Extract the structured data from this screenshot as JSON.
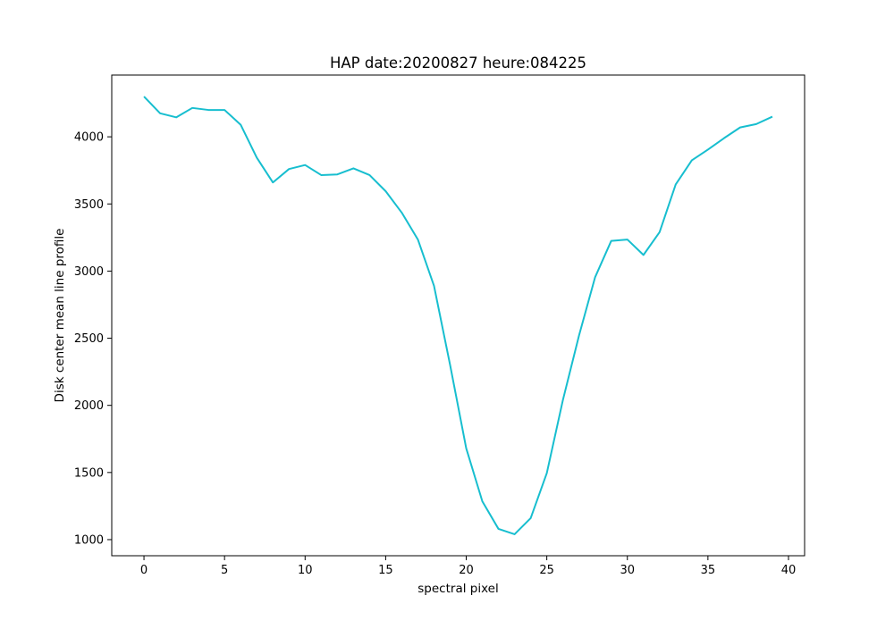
{
  "chart_data": {
    "type": "line",
    "title": "HAP date:20200827 heure:084225",
    "xlabel": "spectral pixel",
    "ylabel": "Disk center mean line profile",
    "xlim": [
      -2,
      41
    ],
    "ylim": [
      880,
      4460
    ],
    "xticks": [
      0,
      5,
      10,
      15,
      20,
      25,
      30,
      35,
      40
    ],
    "yticks": [
      1000,
      1500,
      2000,
      2500,
      3000,
      3500,
      4000
    ],
    "grid": false,
    "legend": "none",
    "series": [
      {
        "color": "#17becf",
        "x": [
          0,
          1,
          2,
          3,
          4,
          5,
          6,
          7,
          8,
          9,
          10,
          11,
          12,
          13,
          14,
          15,
          16,
          17,
          18,
          19,
          20,
          21,
          22,
          23,
          24,
          25,
          26,
          27,
          28,
          29,
          30,
          31,
          32,
          33,
          34,
          35,
          36,
          37,
          38,
          39
        ],
        "y": [
          4300,
          4175,
          4145,
          4215,
          4200,
          4200,
          4090,
          3845,
          3660,
          3760,
          3790,
          3715,
          3720,
          3765,
          3715,
          3595,
          3435,
          3235,
          2890,
          2300,
          1680,
          1285,
          1080,
          1040,
          1160,
          1495,
          2040,
          2520,
          2955,
          3225,
          3235,
          3120,
          3290,
          3645,
          3825,
          3905,
          3990,
          4070,
          4095,
          4150
        ]
      }
    ]
  }
}
